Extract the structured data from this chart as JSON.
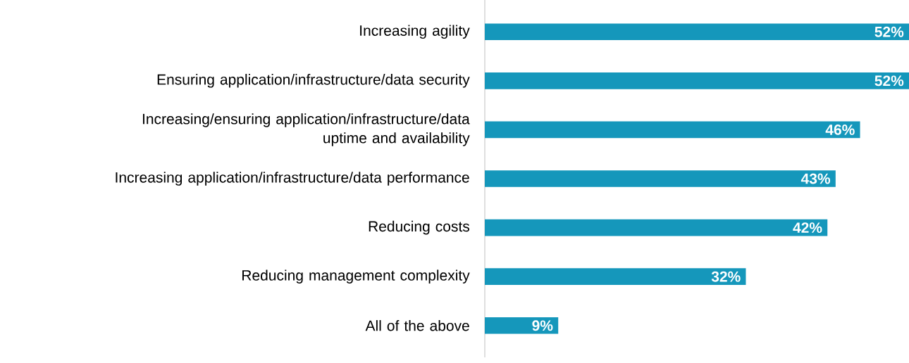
{
  "chart_data": {
    "type": "bar",
    "orientation": "horizontal",
    "color": "#1597bb",
    "categories": [
      "Increasing agility",
      "Ensuring application/infrastructure/data security",
      "Increasing/ensuring application/infrastructure/data uptime and availability",
      "Increasing application/infrastructure/data performance",
      "Reducing costs",
      "Reducing management complexity",
      "All of the above"
    ],
    "values": [
      52,
      52,
      46,
      43,
      42,
      32,
      9
    ],
    "value_labels": [
      "52%",
      "52%",
      "46%",
      "43%",
      "42%",
      "32%",
      "9%"
    ]
  }
}
